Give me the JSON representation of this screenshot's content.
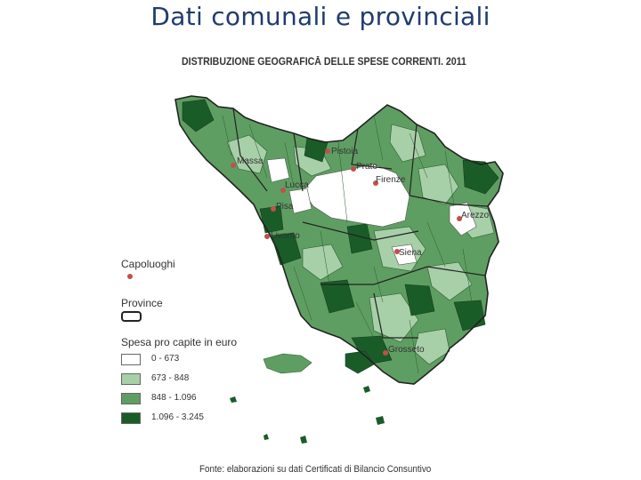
{
  "slide_title": "Dati comunali e provinciali",
  "map_title": "DISTRIBUZIONE GEOGRAFICĂ DELLE SPESE CORRENTI. 2011",
  "cities": [
    "Pistoia",
    "Massa",
    "Prato",
    "Lucca",
    "Firenze",
    "Pisa",
    "Arezzo",
    "Livorno",
    "Siena",
    "Grosseto"
  ],
  "legend": {
    "capoluoghi": "Capoluoghi",
    "province": "Province",
    "spesa_title": "Spesa pro capite in euro",
    "classes": [
      {
        "label": "0 - 673",
        "color": "#ffffff"
      },
      {
        "label": "673 - 848",
        "color": "#a7cfa8"
      },
      {
        "label": "848 - 1.096",
        "color": "#5f9e62"
      },
      {
        "label": "1.096 - 3.245",
        "color": "#1a5c28"
      }
    ]
  },
  "source": "Fonte: elaborazioni su dati Certificati di Bilancio Consuntivo",
  "colors": {
    "title": "#1f3c6e",
    "city_dot": "#c0504d"
  }
}
